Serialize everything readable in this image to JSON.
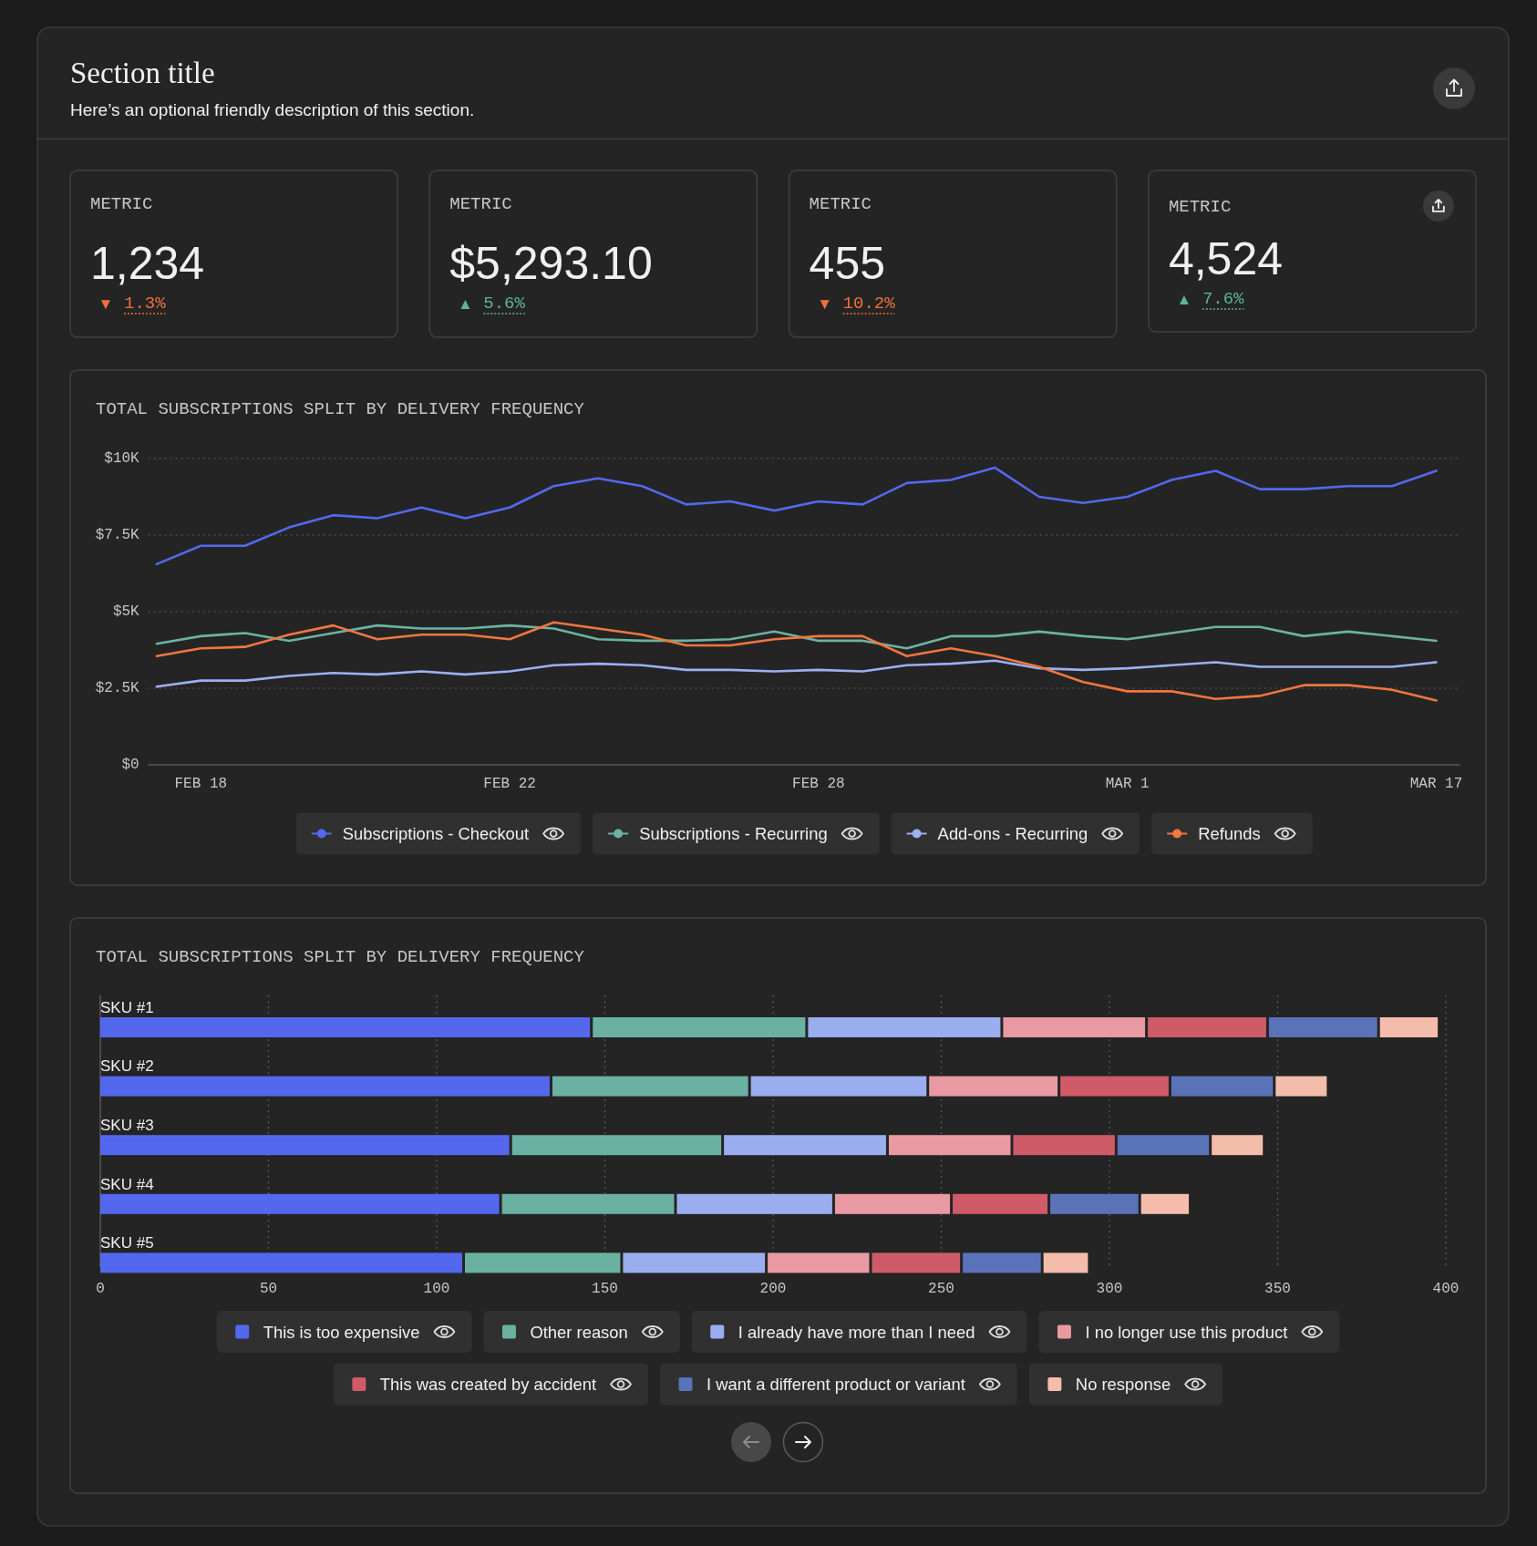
{
  "chart_data": [
    {
      "type": "other",
      "title": "Section title",
      "subtitle": "Here’s an optional friendly description of this section."
    },
    {
      "type": "other",
      "title": "METRIC",
      "annotations": [
        "1,234",
        "▼",
        "1.3%"
      ],
      "color": "#ef703b"
    },
    {
      "type": "other",
      "title": "METRIC",
      "annotations": [
        "$5,293.10",
        "▲",
        "5.6%"
      ],
      "color": "#5cb39d"
    },
    {
      "type": "other",
      "title": "METRIC",
      "annotations": [
        "455",
        "▼",
        "10.2%"
      ],
      "color": "#ef703b"
    },
    {
      "type": "other",
      "title": "METRIC",
      "annotations": [
        "4,524",
        "▲",
        "7.6%"
      ],
      "color": "#5cb39d"
    },
    {
      "type": "line",
      "title": "TOTAL SUBSCRIPTIONS SPLIT BY DELIVERY FREQUENCY",
      "categories": [
        null,
        "FEB 18",
        null,
        null,
        null,
        null,
        null,
        null,
        "FEB 22",
        null,
        null,
        null,
        null,
        null,
        null,
        "FEB 28",
        null,
        null,
        null,
        null,
        null,
        null,
        "MAR 1",
        null,
        null,
        null,
        null,
        null,
        null,
        "MAR 17"
      ],
      "series": [
        {
          "name": "Subscriptions - Checkout",
          "color": "#5468ee",
          "values": [
            6550,
            7150,
            7150,
            7750,
            8150,
            8050,
            8400,
            8050,
            8400,
            9100,
            9350,
            9100,
            8500,
            8600,
            8300,
            8600,
            8500,
            9200,
            9300,
            9700,
            8750,
            8550,
            8750,
            9300,
            9600,
            9000,
            9000,
            9100,
            9100,
            9600
          ]
        },
        {
          "name": "Subscriptions - Recurring",
          "color": "#6bb3a2",
          "values": [
            3950,
            4200,
            4300,
            4050,
            4300,
            4550,
            4450,
            4450,
            4550,
            4450,
            4100,
            4050,
            4050,
            4100,
            4350,
            4050,
            4050,
            3800,
            4200,
            4200,
            4350,
            4200,
            4100,
            4300,
            4500,
            4500,
            4200,
            4350,
            4200,
            4050
          ]
        },
        {
          "name": "Add-ons - Recurring",
          "color": "#9bb0f1",
          "values": [
            2550,
            2750,
            2750,
            2900,
            3000,
            2950,
            3050,
            2950,
            3050,
            3250,
            3300,
            3250,
            3100,
            3100,
            3050,
            3100,
            3050,
            3250,
            3300,
            3400,
            3150,
            3100,
            3150,
            3250,
            3350,
            3200,
            3200,
            3200,
            3200,
            3350
          ]
        },
        {
          "name": "Refunds",
          "color": "#f1763f",
          "values": [
            3550,
            3800,
            3850,
            4250,
            4550,
            4100,
            4250,
            4250,
            4100,
            4650,
            4450,
            4250,
            3900,
            3900,
            4100,
            4200,
            4200,
            3550,
            3800,
            3550,
            3200,
            2700,
            2400,
            2400,
            2150,
            2250,
            2600,
            2600,
            2450,
            2100
          ]
        }
      ],
      "ylim": [
        0,
        10000
      ],
      "yticks": [
        {
          "value": 0,
          "label": "$0"
        },
        {
          "value": 2500,
          "label": "$2.5K"
        },
        {
          "value": 5000,
          "label": "$5K"
        },
        {
          "value": 7500,
          "label": "$7.5K"
        },
        {
          "value": 10000,
          "label": "$10K"
        }
      ],
      "grid": "y",
      "legend": "bottom"
    },
    {
      "type": "bar",
      "orientation": "horizontal",
      "stacked": true,
      "title": "TOTAL SUBSCRIPTIONS SPLIT BY DELIVERY FREQUENCY",
      "categories": [
        "SKU #1",
        "SKU #2",
        "SKU #3",
        "SKU #4",
        "SKU #5"
      ],
      "series": [
        {
          "name": "This is too expensive",
          "color": "#5468ee",
          "values": [
            146,
            134,
            122,
            119,
            108
          ]
        },
        {
          "name": "Other reason",
          "color": "#6ab1a2",
          "values": [
            64,
            59,
            63,
            52,
            47
          ]
        },
        {
          "name": "I already have more than I need",
          "color": "#9aaeef",
          "values": [
            58,
            53,
            49,
            47,
            43
          ]
        },
        {
          "name": "I no longer use this product",
          "color": "#e899a2",
          "values": [
            43,
            39,
            37,
            35,
            31
          ]
        },
        {
          "name": "This was created by accident",
          "color": "#cf5b68",
          "values": [
            36,
            33,
            31,
            29,
            27
          ]
        },
        {
          "name": "I want a different product or variant",
          "color": "#5a72b8",
          "values": [
            33,
            31,
            28,
            27,
            24
          ]
        },
        {
          "name": "No response",
          "color": "#f4bdab",
          "values": [
            18,
            16,
            16,
            15,
            14
          ]
        }
      ],
      "xlim": [
        0,
        400
      ],
      "xticks": [
        0,
        50,
        100,
        150,
        200,
        250,
        300,
        350,
        400
      ],
      "grid": "x",
      "legend": "bottom"
    }
  ]
}
